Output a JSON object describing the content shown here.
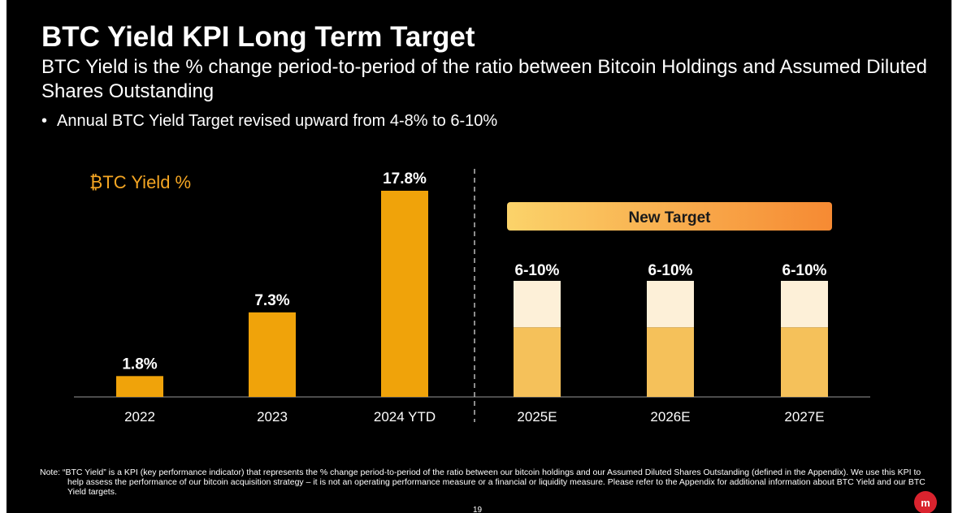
{
  "slide": {
    "title": "BTC Yield KPI Long Term Target",
    "subtitle": "BTC Yield is the % change period-to-period of the ratio between Bitcoin Holdings and Assumed Diluted Shares Outstanding",
    "bullet": "Annual BTC Yield Target revised upward from 4-8% to 6-10%",
    "note": "Note: “BTC Yield” is a KPI (key performance indicator) that represents the % change period-to-period of the ratio between our bitcoin holdings and our Assumed Diluted Shares Outstanding (defined in the Appendix). We use this KPI to help assess the performance of our bitcoin acquisition strategy – it is not an operating performance measure or a financial or liquidity measure. Please refer to the Appendix for additional information about BTC Yield and our BTC Yield targets.",
    "page_number": "19"
  },
  "chart_data": {
    "type": "bar",
    "title": "₿TC Yield %",
    "categories": [
      "2022",
      "2023",
      "2024 YTD",
      "2025E",
      "2026E",
      "2027E"
    ],
    "actual": {
      "categories": [
        "2022",
        "2023",
        "2024 YTD"
      ],
      "values": [
        1.8,
        7.3,
        17.8
      ],
      "labels": [
        "1.8%",
        "7.3%",
        "17.8%"
      ]
    },
    "targets": {
      "categories": [
        "2025E",
        "2026E",
        "2027E"
      ],
      "low": [
        6,
        6,
        6
      ],
      "high": [
        10,
        10,
        10
      ],
      "labels": [
        "6-10%",
        "6-10%",
        "6-10%"
      ]
    },
    "banner_label": "New Target",
    "ylim": [
      0,
      18
    ],
    "colors": {
      "actual": "#f0a30a",
      "target_low": "#f5c15a",
      "target_high": "#fdf0d8",
      "banner_start": "#fbd36a",
      "banner_end": "#f68a33",
      "axis": "#666666",
      "title": "#f5a623",
      "text": "#ffffff"
    }
  }
}
